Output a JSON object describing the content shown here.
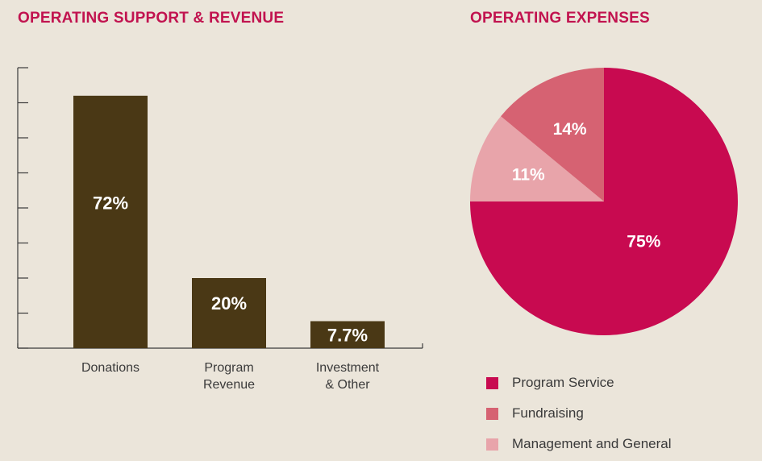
{
  "colors": {
    "title": "#c1134f",
    "bar": "#4a3815",
    "axis": "#3a3a3a",
    "program_service": "#c80a50",
    "fundraising": "#d66272",
    "management": "#e8a4aa"
  },
  "chart_data": [
    {
      "type": "bar",
      "title": "OPERATING SUPPORT & REVENUE",
      "categories": [
        [
          "Donations"
        ],
        [
          "Program",
          "Revenue"
        ],
        [
          "Investment",
          "& Other"
        ]
      ],
      "values": [
        72,
        20,
        7.7
      ],
      "value_labels": [
        "72%",
        "20%",
        "7.7%"
      ],
      "ylim": [
        0,
        80
      ],
      "y_ticks": [
        0,
        10,
        20,
        30,
        40,
        50,
        60,
        70,
        80
      ],
      "show_tick_labels": false,
      "grid": false
    },
    {
      "type": "pie",
      "title": "OPERATING EXPENSES",
      "slices": [
        {
          "label": "Program Service",
          "value": 75,
          "value_label": "75%",
          "color_key": "program_service"
        },
        {
          "label": "Management and General",
          "value": 11,
          "value_label": "11%",
          "color_key": "management"
        },
        {
          "label": "Fundraising",
          "value": 14,
          "value_label": "14%",
          "color_key": "fundraising"
        }
      ],
      "legend": {
        "position": "bottom",
        "items": [
          {
            "label": "Program Service",
            "color_key": "program_service"
          },
          {
            "label": "Fundraising",
            "color_key": "fundraising"
          },
          {
            "label": "Management and General",
            "color_key": "management"
          }
        ]
      }
    }
  ]
}
